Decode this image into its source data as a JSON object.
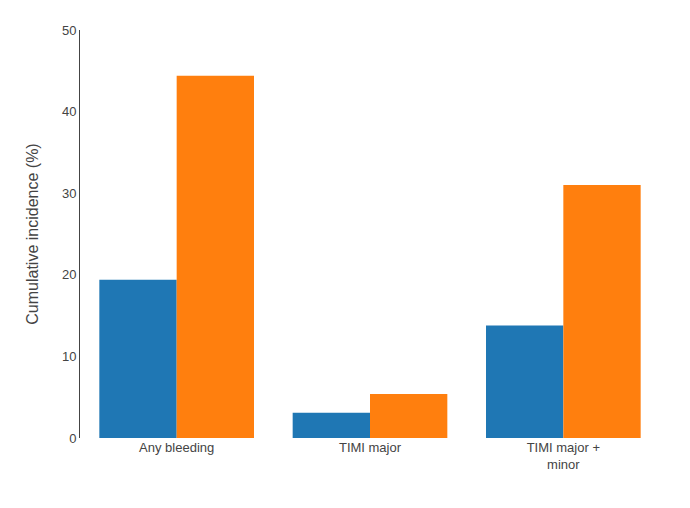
{
  "chart_data": {
    "type": "bar",
    "categories": [
      "Any bleeding",
      "TIMI major",
      "TIMI major +\nminor"
    ],
    "series": [
      {
        "values": [
          19.4,
          3.1,
          13.8
        ]
      },
      {
        "values": [
          44.4,
          5.4,
          31.0
        ]
      }
    ],
    "ylabel": "Cumulative incidence (%)",
    "ylim": [
      0,
      50
    ],
    "yticks": [
      0,
      10,
      20,
      30,
      40,
      50
    ],
    "grid": false
  }
}
